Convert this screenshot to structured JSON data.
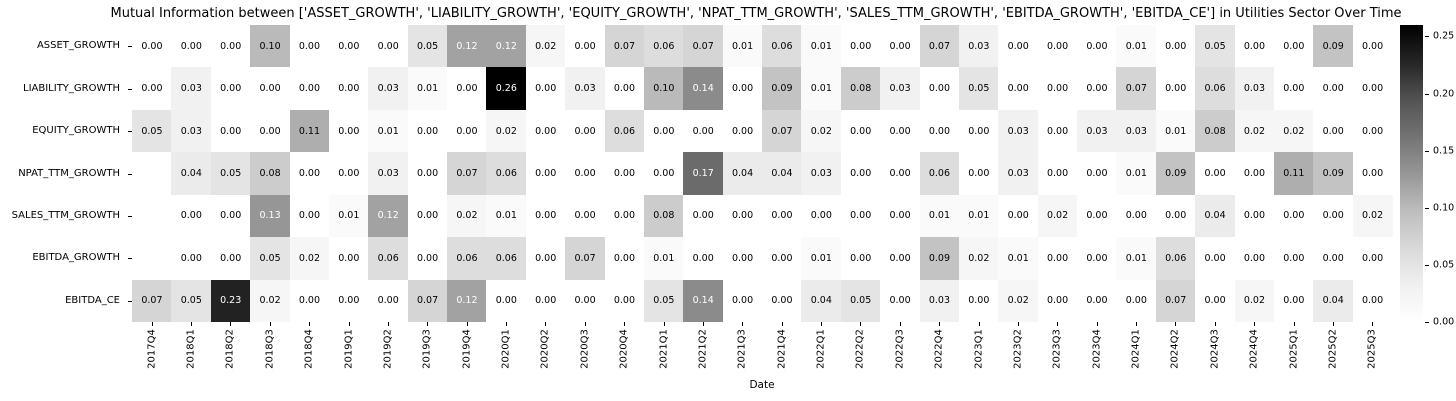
{
  "chart_data": {
    "type": "heatmap",
    "title": "Mutual Information between ['ASSET_GROWTH', 'LIABILITY_GROWTH', 'EQUITY_GROWTH', 'NPAT_TTM_GROWTH', 'SALES_TTM_GROWTH', 'EBITDA_GROWTH', 'EBITDA_CE'] in Utilities Sector Over Time",
    "xlabel": "Date",
    "colormap": "Greys",
    "vmin": 0.0,
    "vmax": 0.26,
    "legend_position": "right-colorbar",
    "grid": false,
    "colorbar_ticks": [
      0.25,
      0.2,
      0.15,
      0.1,
      0.05,
      0.0
    ],
    "x_labels": [
      "2017Q4",
      "2018Q1",
      "2018Q2",
      "2018Q3",
      "2018Q4",
      "2019Q1",
      "2019Q2",
      "2019Q3",
      "2019Q4",
      "2020Q1",
      "2020Q2",
      "2020Q3",
      "2020Q4",
      "2021Q1",
      "2021Q2",
      "2021Q3",
      "2021Q4",
      "2022Q1",
      "2022Q2",
      "2022Q3",
      "2022Q4",
      "2023Q1",
      "2023Q2",
      "2023Q3",
      "2023Q4",
      "2024Q1",
      "2024Q2",
      "2024Q3",
      "2024Q4",
      "2025Q1",
      "2025Q2",
      "2025Q3"
    ],
    "y_labels": [
      "ASSET_GROWTH",
      "LIABILITY_GROWTH",
      "EQUITY_GROWTH",
      "NPAT_TTM_GROWTH",
      "SALES_TTM_GROWTH",
      "EBITDA_GROWTH",
      "EBITDA_CE"
    ],
    "values": [
      [
        0.0,
        0.0,
        0.0,
        0.1,
        0.0,
        0.0,
        0.0,
        0.05,
        0.12,
        0.12,
        0.02,
        0.0,
        0.07,
        0.06,
        0.07,
        0.01,
        0.06,
        0.01,
        0.0,
        0.0,
        0.07,
        0.03,
        0.0,
        0.0,
        0.0,
        0.01,
        0.0,
        0.05,
        0.0,
        0.0,
        0.09,
        0.0
      ],
      [
        0.0,
        0.03,
        0.0,
        0.0,
        0.0,
        0.0,
        0.03,
        0.01,
        0.0,
        0.26,
        0.0,
        0.03,
        0.0,
        0.1,
        0.14,
        0.0,
        0.09,
        0.01,
        0.08,
        0.03,
        0.0,
        0.05,
        0.0,
        0.0,
        0.0,
        0.07,
        0.0,
        0.06,
        0.03,
        0.0,
        0.0,
        0.0
      ],
      [
        0.05,
        0.03,
        0.0,
        0.0,
        0.11,
        0.0,
        0.01,
        0.0,
        0.0,
        0.02,
        0.0,
        0.0,
        0.06,
        0.0,
        0.0,
        0.0,
        0.07,
        0.02,
        0.0,
        0.0,
        0.0,
        0.0,
        0.03,
        0.0,
        0.03,
        0.03,
        0.01,
        0.08,
        0.02,
        0.02,
        0.0,
        0.0
      ],
      [
        null,
        0.04,
        0.05,
        0.08,
        0.0,
        0.0,
        0.03,
        0.0,
        0.07,
        0.06,
        0.0,
        0.0,
        0.0,
        0.0,
        0.17,
        0.04,
        0.04,
        0.03,
        0.0,
        0.0,
        0.06,
        0.0,
        0.03,
        0.0,
        0.0,
        0.01,
        0.09,
        0.0,
        0.0,
        0.11,
        0.09,
        0.0
      ],
      [
        null,
        0.0,
        0.0,
        0.13,
        0.0,
        0.01,
        0.12,
        0.0,
        0.02,
        0.01,
        0.0,
        0.0,
        0.0,
        0.08,
        0.0,
        0.0,
        0.0,
        0.0,
        0.0,
        0.0,
        0.01,
        0.01,
        0.0,
        0.02,
        0.0,
        0.0,
        0.0,
        0.04,
        0.0,
        0.0,
        0.0,
        0.02
      ],
      [
        null,
        0.0,
        0.0,
        0.05,
        0.02,
        0.0,
        0.06,
        0.0,
        0.06,
        0.06,
        0.0,
        0.07,
        0.0,
        0.01,
        0.0,
        0.0,
        0.0,
        0.01,
        0.0,
        0.0,
        0.09,
        0.02,
        0.01,
        0.0,
        0.0,
        0.01,
        0.06,
        0.0,
        0.0,
        0.0,
        0.0,
        0.0
      ],
      [
        0.07,
        0.05,
        0.23,
        0.02,
        0.0,
        0.0,
        0.0,
        0.07,
        0.12,
        0.0,
        0.0,
        0.0,
        0.0,
        0.05,
        0.14,
        0.0,
        0.0,
        0.04,
        0.05,
        0.0,
        0.03,
        0.0,
        0.02,
        0.0,
        0.0,
        0.0,
        0.07,
        0.0,
        0.02,
        0.0,
        0.04,
        0.0
      ]
    ]
  }
}
